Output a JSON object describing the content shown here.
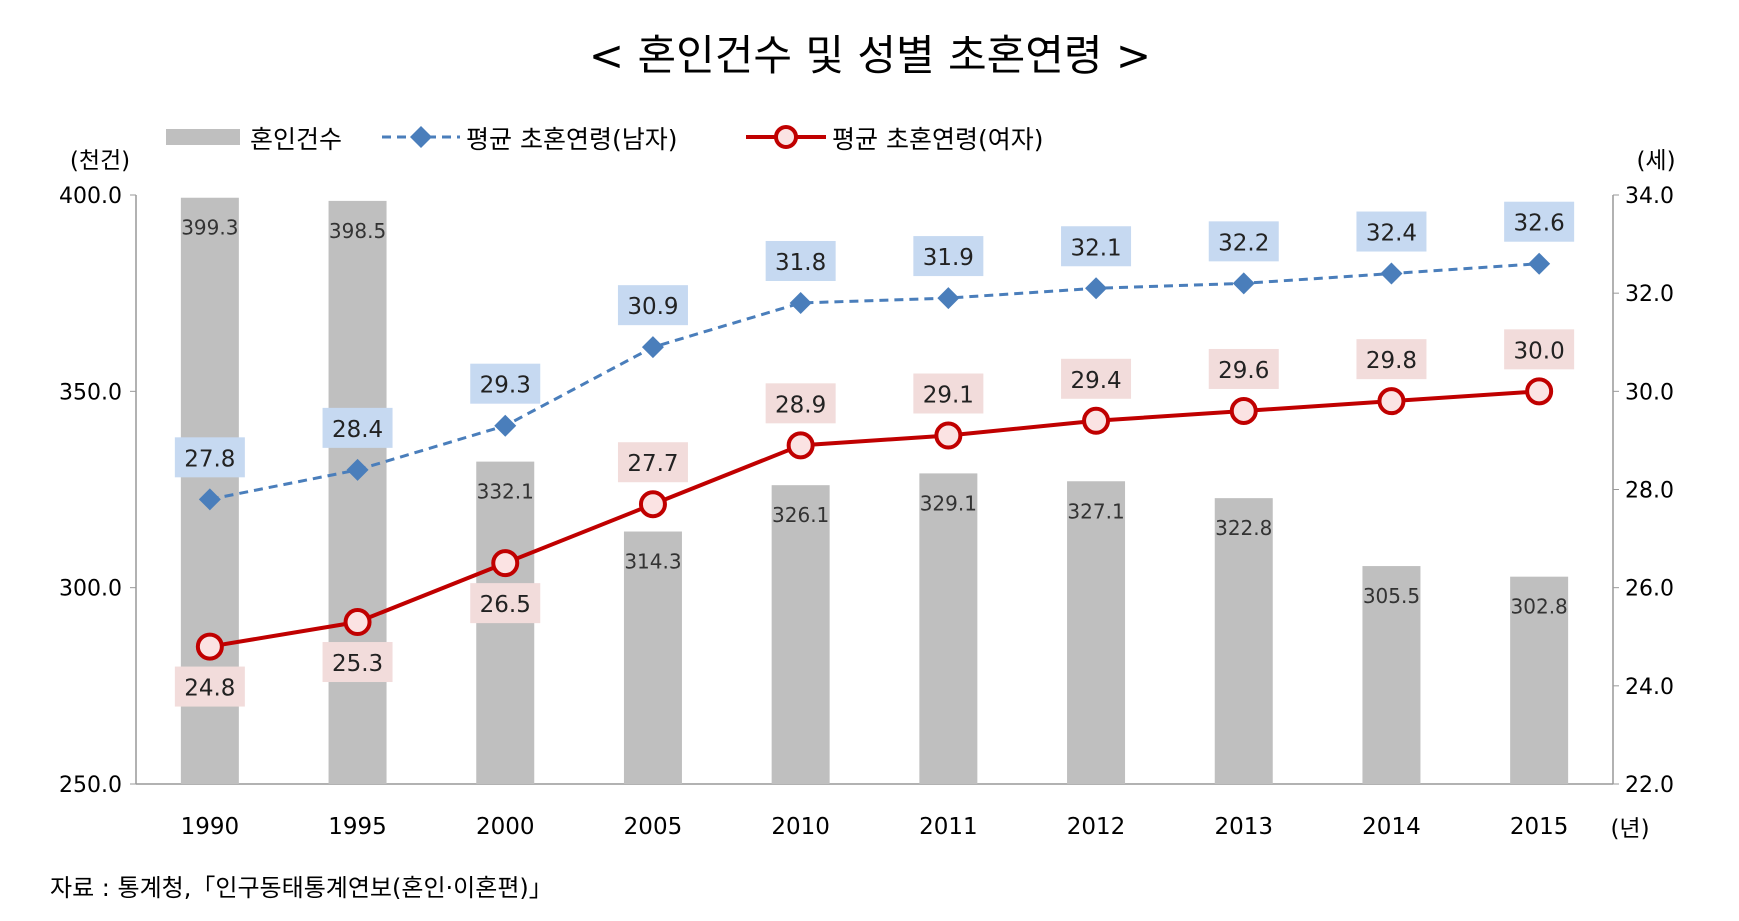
{
  "chart_data": {
    "type": "bar+line",
    "title": "< 혼인건수 및 성별 초혼연령 >",
    "categories": [
      "1990",
      "1995",
      "2000",
      "2005",
      "2010",
      "2011",
      "2012",
      "2013",
      "2014",
      "2015"
    ],
    "x_unit": "(년)",
    "y_left": {
      "unit": "(천건)",
      "range": [
        250,
        400
      ],
      "ticks": [
        "250.0",
        "300.0",
        "350.0",
        "400.0"
      ]
    },
    "y_right": {
      "unit": "(세)",
      "range": [
        22,
        34
      ],
      "ticks": [
        "22.0",
        "24.0",
        "26.0",
        "28.0",
        "30.0",
        "32.0",
        "34.0"
      ]
    },
    "series": [
      {
        "name": "혼인건수",
        "type": "bar",
        "axis": "left",
        "color": "#bfbfbf",
        "values": [
          399.3,
          398.5,
          332.1,
          314.3,
          326.1,
          329.1,
          327.1,
          322.8,
          305.5,
          302.8
        ]
      },
      {
        "name": "평균 초혼연령(남자)",
        "type": "line",
        "axis": "right",
        "color": "#4a7ebb",
        "style": "dashed",
        "marker": "diamond",
        "label_bg": "#c6d9f1",
        "values": [
          27.8,
          28.4,
          29.3,
          30.9,
          31.8,
          31.9,
          32.1,
          32.2,
          32.4,
          32.6
        ]
      },
      {
        "name": "평균 초혼연령(여자)",
        "type": "line",
        "axis": "right",
        "color": "#c00000",
        "style": "solid",
        "marker": "circle",
        "label_bg": "#f2dcdb",
        "values": [
          24.8,
          25.3,
          26.5,
          27.7,
          28.9,
          29.1,
          29.4,
          29.6,
          29.8,
          30.0
        ]
      }
    ],
    "legend": "top",
    "grid": false,
    "source": "자료 : 통계청,「인구동태통계연보(혼인·이혼편)」"
  }
}
